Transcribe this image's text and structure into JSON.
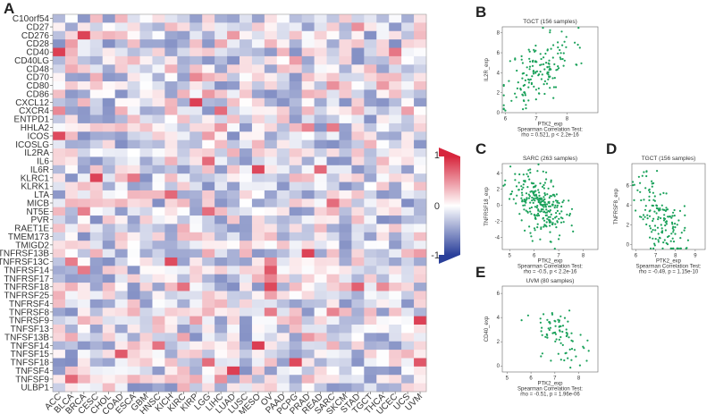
{
  "panels": {
    "A": "A",
    "B": "B",
    "C": "C",
    "D": "D",
    "E": "E"
  },
  "heatmap": {
    "genes": [
      "C10orf54",
      "CD27",
      "CD276",
      "CD28",
      "CD40",
      "CD40LG",
      "CD48",
      "CD70",
      "CD80",
      "CD86",
      "CXCL12",
      "CXCR4",
      "ENTPD1",
      "HHLA2",
      "ICOS",
      "ICOSLG",
      "IL2RA",
      "IL6",
      "IL6R",
      "KLRC1",
      "KLRK1",
      "LTA",
      "MICB",
      "NT5E",
      "PVR",
      "RAET1E",
      "TMEM173",
      "TMIGD2",
      "TNFRSF13B",
      "TNFRSF13C",
      "TNFRSF14",
      "TNFRSF17",
      "TNFRSF18",
      "TNFRSF25",
      "TNFRSF4",
      "TNFRSF8",
      "TNFRSF9",
      "TNFSF13",
      "TNFSF13B",
      "TNFSF14",
      "TNFSF15",
      "TNFSF18",
      "TNFSF4",
      "TNFSF9",
      "ULBP1"
    ],
    "cancers": [
      "ACC",
      "BLCA",
      "BRCA",
      "CESC",
      "CHOL",
      "COAD",
      "ESCA",
      "GBM",
      "HNSC",
      "KICH",
      "KIRC",
      "KIRP",
      "LGG",
      "LIHC",
      "LUAD",
      "LUSC",
      "MESO",
      "OV",
      "PAAD",
      "PCPG",
      "PRAD",
      "READ",
      "SARC",
      "SKCM",
      "STAD",
      "TGCT",
      "THCA",
      "UCEC",
      "UCS",
      "UVM"
    ],
    "legend": {
      "max": "1",
      "mid": "0",
      "min": "-1"
    }
  },
  "chart_data": [
    {
      "panel": "B",
      "type": "scatter",
      "title": "TGCT (156 samples)",
      "xlabel": "PTK2_exp",
      "ylabel": "IL2R_exp",
      "xticks": [
        "6",
        "7",
        "8"
      ],
      "yticks": [
        "0",
        "2",
        "4",
        "6",
        "8"
      ],
      "xlim": [
        5.9,
        9.0
      ],
      "ylim": [
        0,
        8.6
      ],
      "stat_line1": "Spearman Correlation Test:",
      "stat_line2": "rho = 0.521, p < 2.2e-16",
      "n": 156,
      "rho": 0.521,
      "xmean": 7.1,
      "xsd": 0.55,
      "ymean": 4.2,
      "ysd": 2.0,
      "seed": 11
    },
    {
      "panel": "C",
      "type": "scatter",
      "title": "SARC (263 samples)",
      "xlabel": "PTK2_exp",
      "ylabel": "TNFRSF18_exp",
      "xticks": [
        "5",
        "6",
        "7",
        "8"
      ],
      "yticks": [
        "-4",
        "-2",
        "0",
        "2",
        "4"
      ],
      "xlim": [
        4.7,
        8.6
      ],
      "ylim": [
        -5.5,
        5.2
      ],
      "stat_line1": "Spearman Correlation Test:",
      "stat_line2": "rho = -0.5, p < 2.2e-16",
      "n": 263,
      "rho": -0.5,
      "xmean": 6.2,
      "xsd": 0.55,
      "ymean": 0.2,
      "ysd": 2.0,
      "seed": 23
    },
    {
      "panel": "D",
      "type": "scatter",
      "title": "TGCT (156 samples)",
      "xlabel": "PTK2_exp",
      "ylabel": "TNFRSF8_exp",
      "xticks": [
        "6",
        "7",
        "8",
        "9"
      ],
      "yticks": [
        "0",
        "2",
        "4",
        "6"
      ],
      "xlim": [
        5.8,
        9.5
      ],
      "ylim": [
        -0.5,
        8.2
      ],
      "stat_line1": "Spearman Correlation Test:",
      "stat_line2": "rho = -0.49, p = 1.15e-10",
      "n": 156,
      "rho": -0.49,
      "xmean": 7.2,
      "xsd": 0.6,
      "ymean": 2.8,
      "ysd": 2.1,
      "seed": 37
    },
    {
      "panel": "E",
      "type": "scatter",
      "title": "UVM (80 samples)",
      "xlabel": "PTK2_exp",
      "ylabel": "CD40_exp",
      "xticks": [
        "5",
        "6",
        "7",
        "8"
      ],
      "yticks": [
        "0",
        "2",
        "4",
        "6"
      ],
      "xlim": [
        4.8,
        8.8
      ],
      "ylim": [
        -0.5,
        6.6
      ],
      "stat_line1": "Spearman Correlation Test:",
      "stat_line2": "rho = -0.51, p = 1.96e-06",
      "n": 80,
      "rho": -0.51,
      "xmean": 7.2,
      "xsd": 0.6,
      "ymean": 2.6,
      "ysd": 1.3,
      "seed": 53
    }
  ],
  "colors": {
    "pos": "#d7263d",
    "neg": "#2a3f9a",
    "mid": "#ffffff",
    "point": "#1aa15a",
    "frame": "#666666",
    "text": "#333333"
  }
}
